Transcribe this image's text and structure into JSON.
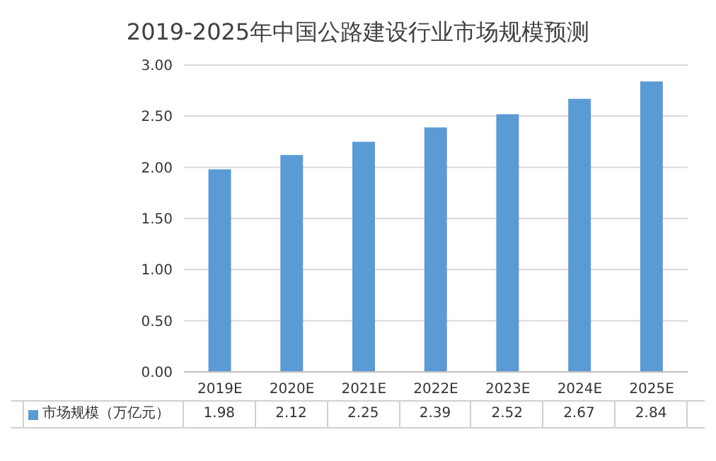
{
  "chart_data": {
    "type": "bar",
    "title": "2019-2025年中国公路建设行业市场规模预测",
    "categories": [
      "2019E",
      "2020E",
      "2021E",
      "2022E",
      "2023E",
      "2024E",
      "2025E"
    ],
    "series": [
      {
        "name": "市场规模（万亿元）",
        "color": "#5b9bd5",
        "values": [
          1.98,
          2.12,
          2.25,
          2.39,
          2.52,
          2.67,
          2.84
        ]
      }
    ],
    "ylim": [
      0,
      3
    ],
    "yticks": [
      {
        "value": 0,
        "label": "0.00"
      },
      {
        "value": 0.5,
        "label": "0.50"
      },
      {
        "value": 1,
        "label": "1.00"
      },
      {
        "value": 1.5,
        "label": "1.50"
      },
      {
        "value": 2,
        "label": "2.00"
      },
      {
        "value": 2.5,
        "label": "2.50"
      },
      {
        "value": 3,
        "label": "3.00"
      }
    ],
    "grid": "y",
    "legend": "bottom",
    "data_labels": true
  }
}
